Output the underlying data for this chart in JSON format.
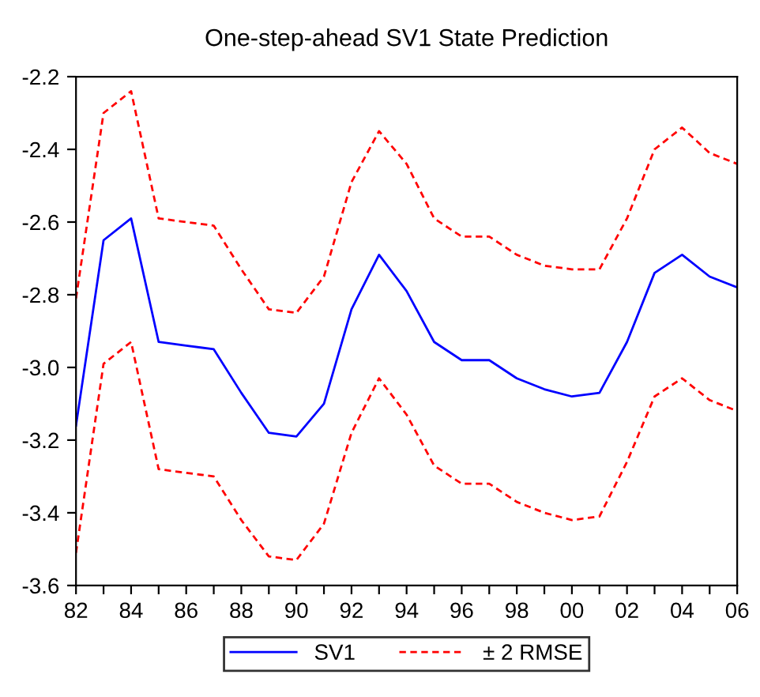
{
  "chart_data": {
    "type": "line",
    "title": "One-step-ahead SV1 State Prediction",
    "x": [
      1982,
      1983,
      1984,
      1985,
      1986,
      1987,
      1988,
      1989,
      1990,
      1991,
      1992,
      1993,
      1994,
      1995,
      1996,
      1997,
      1998,
      1999,
      2000,
      2001,
      2002,
      2003,
      2004,
      2005,
      2006
    ],
    "series": [
      {
        "name": "SV1",
        "color": "#0000ff",
        "line_style": "solid",
        "values": [
          -3.16,
          -2.65,
          -2.59,
          -2.93,
          -2.94,
          -2.95,
          -3.07,
          -3.18,
          -3.19,
          -3.1,
          -2.84,
          -2.69,
          -2.79,
          -2.93,
          -2.98,
          -2.98,
          -3.03,
          -3.06,
          -3.08,
          -3.07,
          -2.93,
          -2.74,
          -2.69,
          -2.75,
          -2.78
        ]
      },
      {
        "name": "± 2 RMSE",
        "color": "#ff0000",
        "line_style": "dashed",
        "values": [
          -2.81,
          -2.3,
          -2.24,
          -2.59,
          -2.6,
          -2.61,
          -2.73,
          -2.84,
          -2.85,
          -2.75,
          -2.49,
          -2.35,
          -2.44,
          -2.59,
          -2.64,
          -2.64,
          -2.69,
          -2.72,
          -2.73,
          -2.73,
          -2.59,
          -2.4,
          -2.34,
          -2.41,
          -2.44
        ]
      },
      {
        "color": "#ff0000",
        "line_style": "dashed",
        "values": [
          -3.51,
          -2.99,
          -2.93,
          -3.28,
          -3.29,
          -3.3,
          -3.42,
          -3.52,
          -3.53,
          -3.43,
          -3.18,
          -3.03,
          -3.13,
          -3.27,
          -3.32,
          -3.32,
          -3.37,
          -3.4,
          -3.42,
          -3.41,
          -3.26,
          -3.08,
          -3.03,
          -3.09,
          -3.12
        ]
      }
    ],
    "xlim": [
      1982,
      2006
    ],
    "xticks": [
      {
        "value": 1982,
        "label": "82"
      },
      {
        "value": 1983,
        "label": null
      },
      {
        "value": 1984,
        "label": "84"
      },
      {
        "value": 1985,
        "label": null
      },
      {
        "value": 1986,
        "label": "86"
      },
      {
        "value": 1987,
        "label": null
      },
      {
        "value": 1988,
        "label": "88"
      },
      {
        "value": 1989,
        "label": null
      },
      {
        "value": 1990,
        "label": "90"
      },
      {
        "value": 1991,
        "label": null
      },
      {
        "value": 1992,
        "label": "92"
      },
      {
        "value": 1993,
        "label": null
      },
      {
        "value": 1994,
        "label": "94"
      },
      {
        "value": 1995,
        "label": null
      },
      {
        "value": 1996,
        "label": "96"
      },
      {
        "value": 1997,
        "label": null
      },
      {
        "value": 1998,
        "label": "98"
      },
      {
        "value": 1999,
        "label": null
      },
      {
        "value": 2000,
        "label": "00"
      },
      {
        "value": 2001,
        "label": null
      },
      {
        "value": 2002,
        "label": "02"
      },
      {
        "value": 2003,
        "label": null
      },
      {
        "value": 2004,
        "label": "04"
      },
      {
        "value": 2005,
        "label": null
      },
      {
        "value": 2006,
        "label": "06"
      }
    ],
    "ylim": [
      -3.6,
      -2.2
    ],
    "yticks": [
      {
        "value": -3.6,
        "label": "-3.6"
      },
      {
        "value": -3.4,
        "label": "-3.4"
      },
      {
        "value": -3.2,
        "label": "-3.2"
      },
      {
        "value": -3.0,
        "label": "-3.0"
      },
      {
        "value": -2.8,
        "label": "-2.8"
      },
      {
        "value": -2.6,
        "label": "-2.6"
      },
      {
        "value": -2.4,
        "label": "-2.4"
      },
      {
        "value": -2.2,
        "label": "-2.2"
      }
    ],
    "grid": false,
    "legend": "bottom",
    "marker": "none"
  }
}
